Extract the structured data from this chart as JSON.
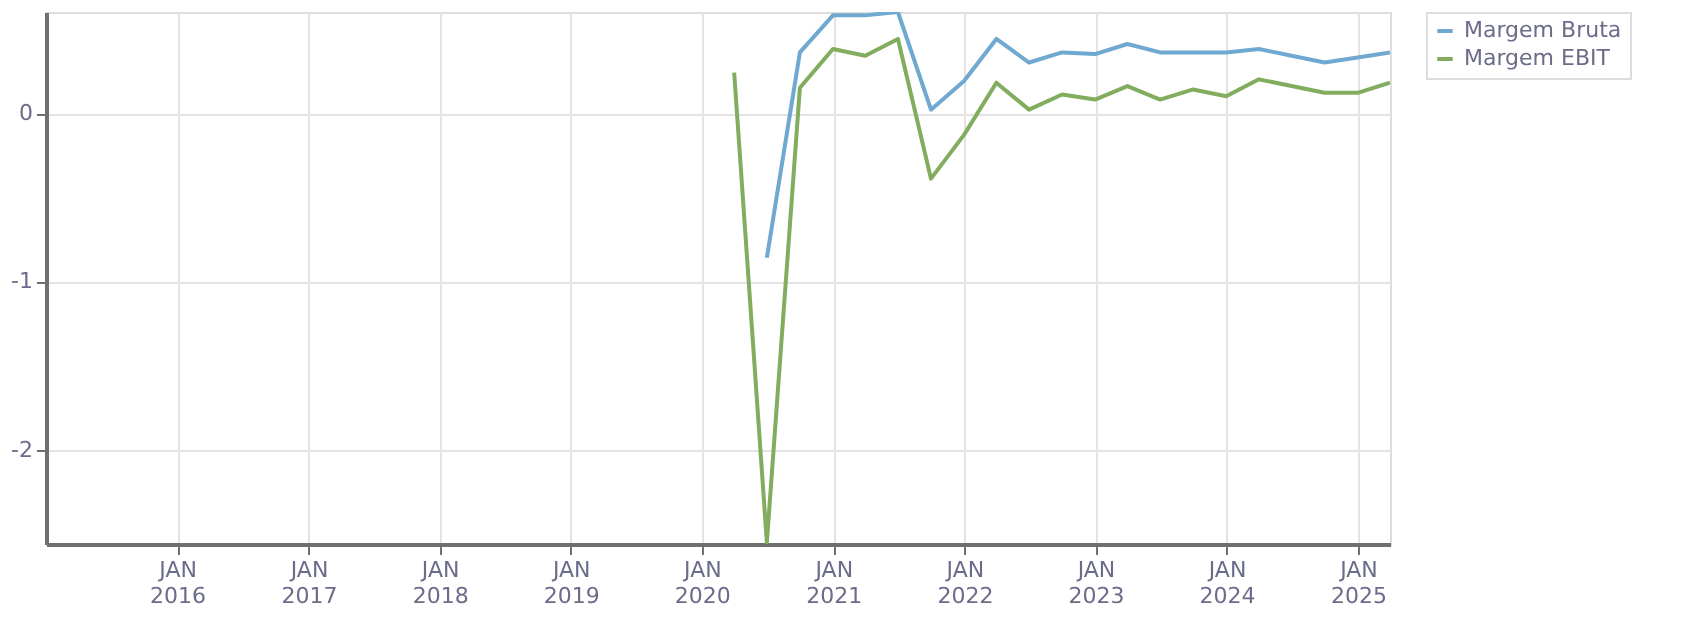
{
  "chart_data": {
    "type": "line",
    "x": [
      "2020-03-31",
      "2020-06-30",
      "2020-09-30",
      "2020-12-31",
      "2021-03-31",
      "2021-06-30",
      "2021-09-30",
      "2021-12-31",
      "2022-03-31",
      "2022-06-30",
      "2022-09-30",
      "2022-12-31",
      "2023-03-31",
      "2023-06-30",
      "2023-09-30",
      "2023-12-31",
      "2024-03-31",
      "2024-06-30",
      "2024-09-30",
      "2024-12-31",
      "2025-03-31"
    ],
    "series": [
      {
        "name": "Margem Bruta",
        "color": "#6fa8d0",
        "values": [
          null,
          -0.86,
          0.36,
          0.58,
          0.58,
          0.6,
          0.02,
          0.19,
          0.44,
          0.3,
          0.36,
          0.35,
          0.41,
          0.36,
          0.36,
          0.36,
          0.38,
          0.34,
          0.3,
          0.33,
          0.36
        ]
      },
      {
        "name": "Margem EBIT",
        "color": "#82ad5f",
        "values": [
          0.24,
          -2.55,
          0.15,
          0.38,
          0.34,
          0.44,
          -0.39,
          -0.13,
          0.18,
          0.02,
          0.11,
          0.08,
          0.16,
          0.08,
          0.14,
          0.1,
          0.2,
          0.16,
          0.12,
          0.12,
          0.18
        ]
      }
    ],
    "xlim": [
      "2015-01-01",
      "2025-03-31"
    ],
    "xticks": [
      {
        "value": "2016-01-01",
        "label": "JAN\n2016"
      },
      {
        "value": "2017-01-01",
        "label": "JAN\n2017"
      },
      {
        "value": "2018-01-01",
        "label": "JAN\n2018"
      },
      {
        "value": "2019-01-01",
        "label": "JAN\n2019"
      },
      {
        "value": "2020-01-01",
        "label": "JAN\n2020"
      },
      {
        "value": "2021-01-01",
        "label": "JAN\n2021"
      },
      {
        "value": "2022-01-01",
        "label": "JAN\n2022"
      },
      {
        "value": "2023-01-01",
        "label": "JAN\n2023"
      },
      {
        "value": "2024-01-01",
        "label": "JAN\n2024"
      },
      {
        "value": "2025-01-01",
        "label": "JAN\n2025"
      }
    ],
    "ylim": [
      -2.56,
      0.6
    ],
    "yticks": [
      0,
      -1,
      -2
    ],
    "grid": true,
    "legend": "top right",
    "line_style": "solid",
    "marker": "none"
  }
}
